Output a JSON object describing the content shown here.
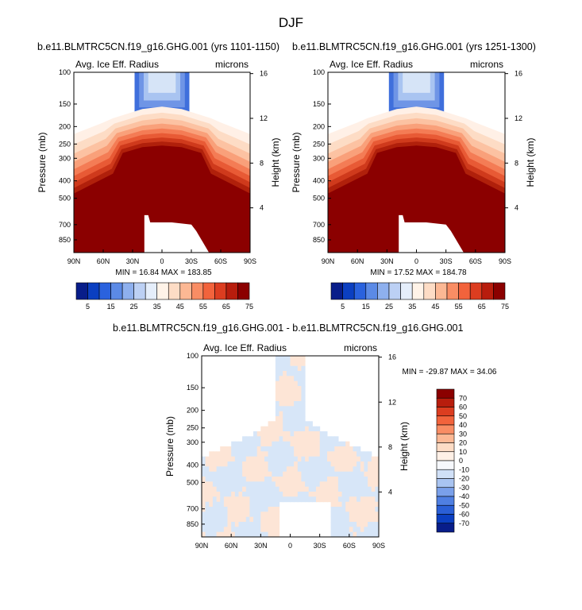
{
  "page_title": "DJF",
  "colors": {
    "fill_dark": "#8b0000",
    "blue_strong": "#3f6fdc",
    "blue_mid": "#6f95e6",
    "blue_light": "#a9c4f1",
    "blue_pale": "#d6e4f7",
    "cream": "#fff0e6",
    "diff_pos": "#fde5d6",
    "diff_neg": "#d7e6f8"
  },
  "chart_data": [
    {
      "type": "heatmap",
      "name": "panel-1",
      "title": "b.e11.BLMTRC5CN.f19_g16.GHG.001 (yrs 1101-1150)",
      "left_label": "Avg. Ice Eff. Radius",
      "right_label": "microns",
      "ylabel": "Pressure (mb)",
      "y2label": "Height (km)",
      "x_ticks": [
        "90N",
        "60N",
        "30N",
        "0",
        "30S",
        "60S",
        "90S"
      ],
      "x_range": [
        90,
        -90
      ],
      "y_ticks": [
        100,
        150,
        200,
        250,
        300,
        400,
        500,
        700,
        850
      ],
      "y_range": [
        100,
        1000
      ],
      "height_ticks": [
        16,
        12,
        8,
        4
      ],
      "min_max": "MIN = 16.84   MAX = 183.85",
      "colorbar": {
        "labels": [
          "5",
          "15",
          "25",
          "35",
          "45",
          "55",
          "65",
          "75"
        ],
        "colors": [
          "#081d8a",
          "#0b3fc1",
          "#2a62de",
          "#5b8ae6",
          "#8eb0ee",
          "#bcd0f4",
          "#e5eefb",
          "#fff3e8",
          "#fddcc5",
          "#fcb894",
          "#f98d64",
          "#f2633c",
          "#dc3d20",
          "#b81d0d",
          "#8b0000"
        ]
      },
      "contours": [
        {
          "value": 5,
          "color": "#3f6fdc"
        },
        {
          "value": 15,
          "color": "#6f95e6"
        },
        {
          "value": 25,
          "color": "#a9c4f1"
        },
        {
          "value": 35,
          "color": "#d6e4f7"
        },
        {
          "value": 40,
          "color": "#fff0e6"
        },
        {
          "value": 45,
          "color": "#fddcc5"
        },
        {
          "value": 50,
          "color": "#fcc2a2"
        },
        {
          "value": 55,
          "color": "#f9a07a"
        },
        {
          "value": 60,
          "color": "#f47c55"
        },
        {
          "value": 65,
          "color": "#e85a35"
        },
        {
          "value": 70,
          "color": "#cf3a1c"
        },
        {
          "value": 75,
          "color": "#b0200b"
        },
        {
          "value": 80,
          "color": "#8b0000"
        }
      ]
    },
    {
      "type": "heatmap",
      "name": "panel-2",
      "title": "b.e11.BLMTRC5CN.f19_g16.GHG.001 (yrs 1251-1300)",
      "left_label": "Avg. Ice Eff. Radius",
      "right_label": "microns",
      "ylabel": "Pressure (mb)",
      "y2label": "Height (km)",
      "x_ticks": [
        "90N",
        "60N",
        "30N",
        "0",
        "30S",
        "60S",
        "90S"
      ],
      "x_range": [
        90,
        -90
      ],
      "y_ticks": [
        100,
        150,
        200,
        250,
        300,
        400,
        500,
        700,
        850
      ],
      "y_range": [
        100,
        1000
      ],
      "height_ticks": [
        16,
        12,
        8,
        4
      ],
      "min_max": "MIN = 17.52   MAX = 184.78",
      "colorbar": {
        "labels": [
          "5",
          "15",
          "25",
          "35",
          "45",
          "55",
          "65",
          "75"
        ],
        "colors": [
          "#081d8a",
          "#0b3fc1",
          "#2a62de",
          "#5b8ae6",
          "#8eb0ee",
          "#bcd0f4",
          "#e5eefb",
          "#fff3e8",
          "#fddcc5",
          "#fcb894",
          "#f98d64",
          "#f2633c",
          "#dc3d20",
          "#b81d0d",
          "#8b0000"
        ]
      },
      "contours": [
        {
          "value": 5,
          "color": "#3f6fdc"
        },
        {
          "value": 15,
          "color": "#6f95e6"
        },
        {
          "value": 25,
          "color": "#a9c4f1"
        },
        {
          "value": 35,
          "color": "#d6e4f7"
        },
        {
          "value": 40,
          "color": "#fff0e6"
        },
        {
          "value": 45,
          "color": "#fddcc5"
        },
        {
          "value": 50,
          "color": "#fcc2a2"
        },
        {
          "value": 55,
          "color": "#f9a07a"
        },
        {
          "value": 60,
          "color": "#f47c55"
        },
        {
          "value": 65,
          "color": "#e85a35"
        },
        {
          "value": 70,
          "color": "#cf3a1c"
        },
        {
          "value": 75,
          "color": "#b0200b"
        },
        {
          "value": 80,
          "color": "#8b0000"
        }
      ]
    },
    {
      "type": "heatmap",
      "name": "panel-diff",
      "title": "b.e11.BLMTRC5CN.f19_g16.GHG.001 - b.e11.BLMTRC5CN.f19_g16.GHG.001",
      "left_label": "Avg. Ice Eff. Radius",
      "right_label": "microns",
      "ylabel": "Pressure (mb)",
      "y2label": "Height (km)",
      "x_ticks": [
        "90N",
        "60N",
        "30N",
        "0",
        "30S",
        "60S",
        "90S"
      ],
      "x_range": [
        90,
        -90
      ],
      "y_ticks": [
        100,
        150,
        200,
        250,
        300,
        400,
        500,
        700,
        850
      ],
      "y_range": [
        100,
        1000
      ],
      "height_ticks": [
        16,
        12,
        8,
        4
      ],
      "min_max": "MIN = -29.87   MAX =  34.06",
      "colorbar": {
        "labels": [
          "70",
          "60",
          "50",
          "40",
          "30",
          "20",
          "10",
          "0",
          "-10",
          "-20",
          "-30",
          "-40",
          "-50",
          "-60",
          "-70"
        ],
        "colors": [
          "#8b0000",
          "#b81d0d",
          "#dc3d20",
          "#f2633c",
          "#f98d64",
          "#fcb894",
          "#fddcc5",
          "#fff0e6",
          "#f6f8fc",
          "#d0e0f7",
          "#a9c4f1",
          "#7aa0ea",
          "#4f7fe2",
          "#2a5fd6",
          "#0b3fc1",
          "#081d8a"
        ]
      }
    }
  ]
}
